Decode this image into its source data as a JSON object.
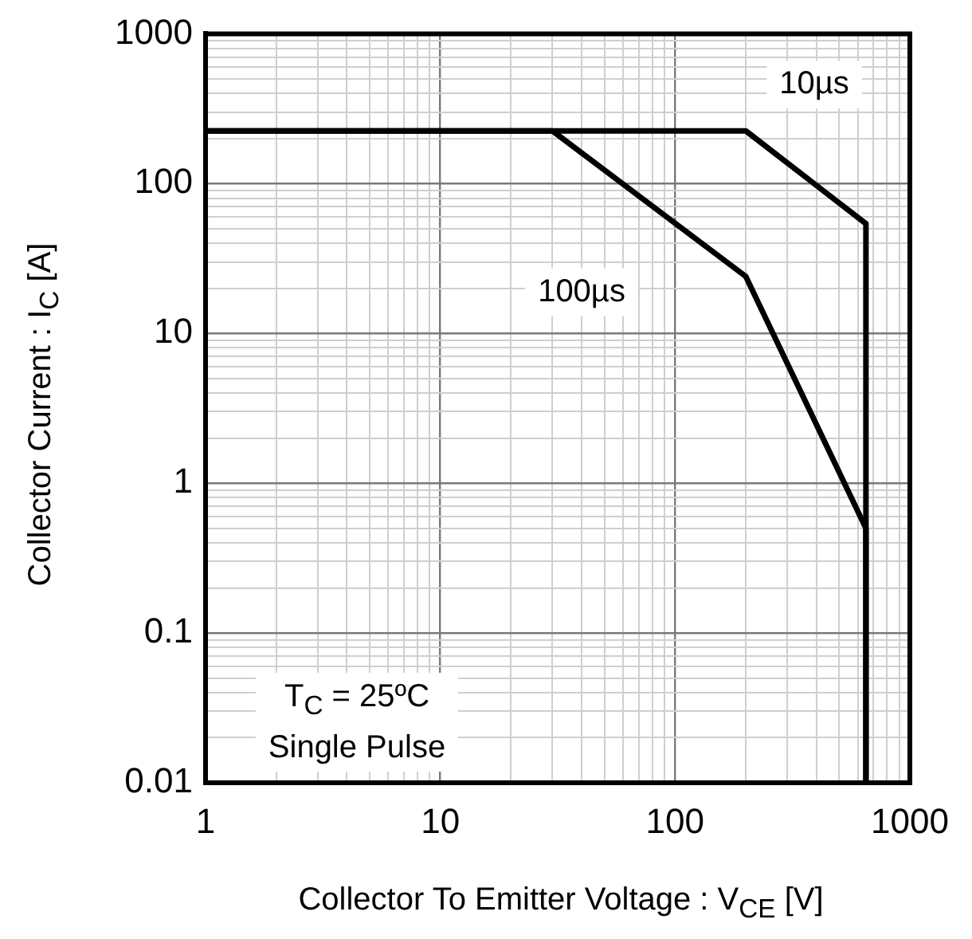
{
  "chart_data": {
    "type": "line",
    "xlabel": "Collector To Emitter Voltage : V$_{CE}$ [V]",
    "ylabel": "Collector Current : I$_{C}$ [A]",
    "series": [
      {
        "name": "10µs",
        "color": "#000000",
        "x": [
          1,
          200,
          650,
          650
        ],
        "values": [
          225,
          225,
          54,
          0.01
        ]
      },
      {
        "name": "100µs",
        "color": "#000000",
        "x": [
          1,
          30,
          200,
          650,
          650
        ],
        "values": [
          225,
          225,
          24,
          0.5,
          0.01
        ]
      }
    ],
    "xlim": [
      1,
      1000
    ],
    "ylim": [
      0.01,
      1000
    ],
    "xticks": [
      1,
      10,
      100,
      1000
    ],
    "yticks": [
      0.01,
      0.1,
      1,
      10,
      100,
      1000
    ],
    "log": "xy",
    "grid": true,
    "legend": false,
    "marker": "none",
    "line_style": "solid",
    "annotations": [
      "T$_{C}$ = 25ºC\nSingle Pulse"
    ]
  }
}
